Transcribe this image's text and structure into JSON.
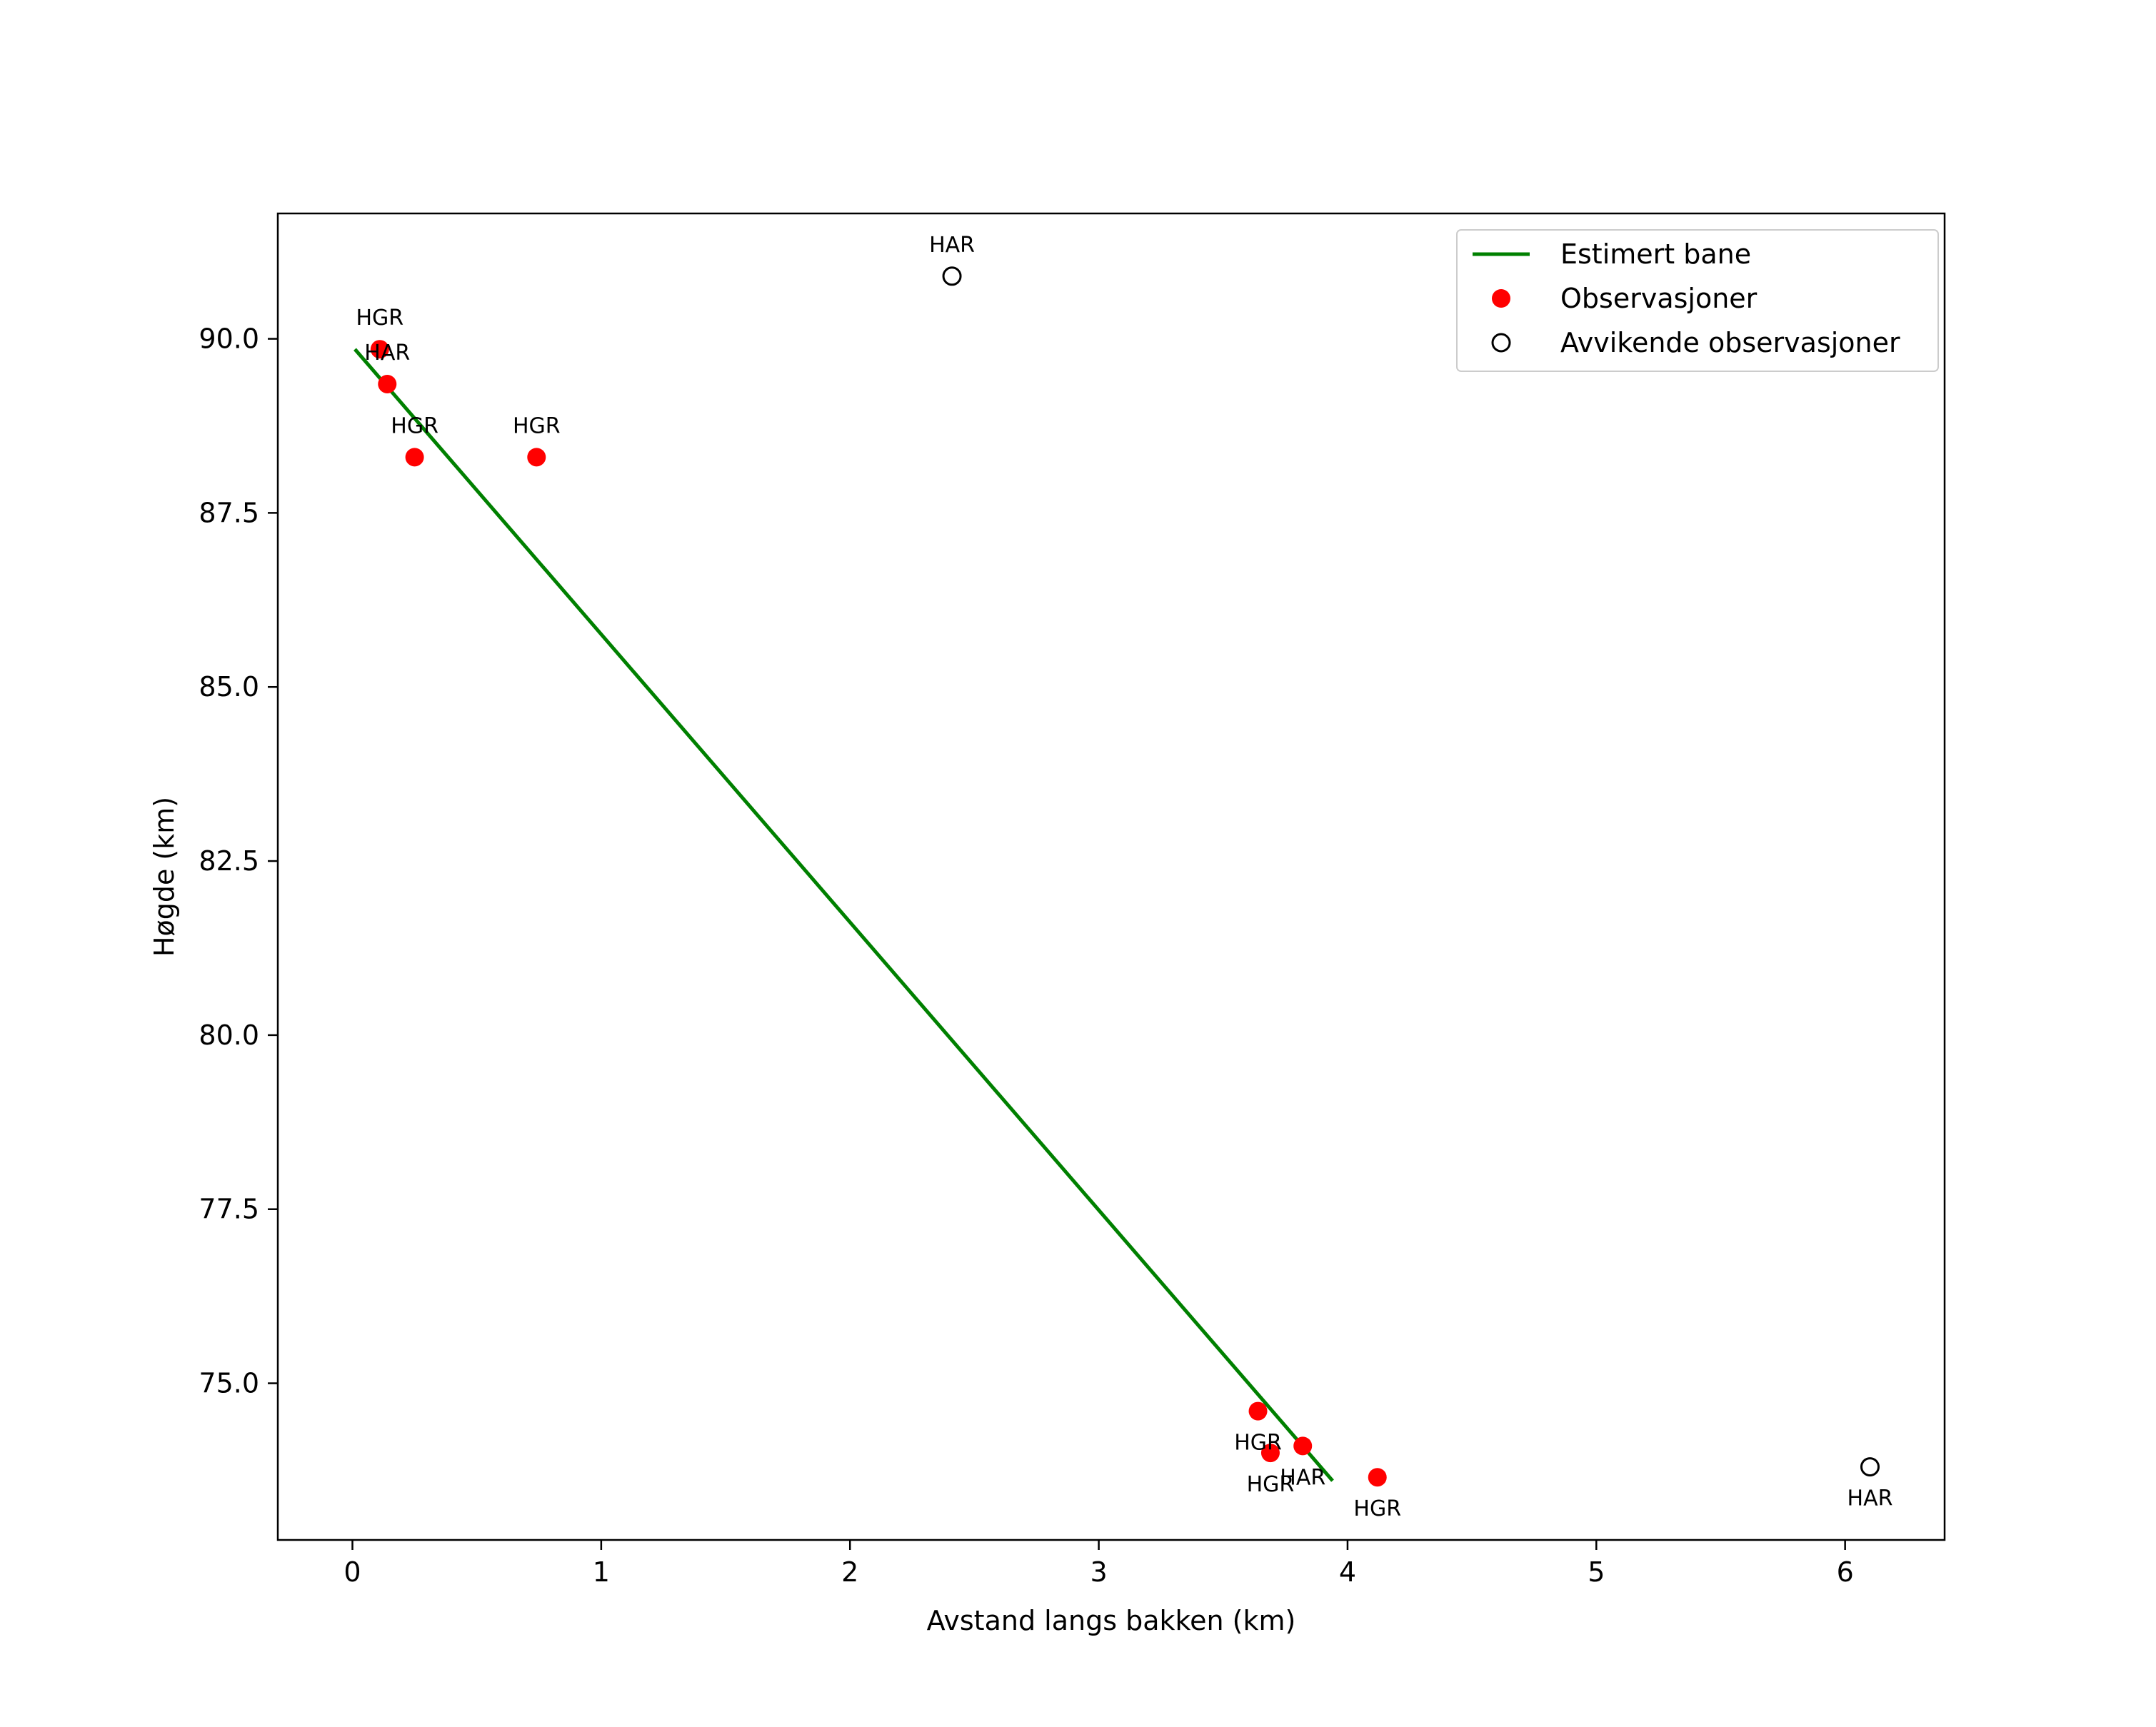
{
  "chart_data": {
    "type": "scatter",
    "title": "",
    "xlabel": "Avstand langs bakken (km)",
    "ylabel": "Høgde (km)",
    "xlim": [
      -0.3,
      6.4
    ],
    "ylim": [
      72.75,
      91.8
    ],
    "xticks": [
      {
        "value": 0,
        "label": "0"
      },
      {
        "value": 1,
        "label": "1"
      },
      {
        "value": 2,
        "label": "2"
      },
      {
        "value": 3,
        "label": "3"
      },
      {
        "value": 4,
        "label": "4"
      },
      {
        "value": 5,
        "label": "5"
      },
      {
        "value": 6,
        "label": "6"
      }
    ],
    "yticks": [
      {
        "value": 75.0,
        "label": "75.0"
      },
      {
        "value": 77.5,
        "label": "77.5"
      },
      {
        "value": 80.0,
        "label": "80.0"
      },
      {
        "value": 82.5,
        "label": "82.5"
      },
      {
        "value": 85.0,
        "label": "85.0"
      },
      {
        "value": 87.5,
        "label": "87.5"
      },
      {
        "value": 90.0,
        "label": "90.0"
      }
    ],
    "grid": false,
    "legend_position": "top-right",
    "colors": {
      "line": "#008000",
      "observation": "#ff0000",
      "outlier_edge": "#000000",
      "axes": "#000000"
    },
    "series": [
      {
        "name": "Estimert bane",
        "kind": "line",
        "points": [
          {
            "x": 0.01,
            "y": 89.85
          },
          {
            "x": 3.94,
            "y": 73.6
          }
        ]
      },
      {
        "name": "Observasjoner",
        "kind": "scatter",
        "points": [
          {
            "x": 0.11,
            "y": 89.85,
            "label": "HGR",
            "label_pos": "above"
          },
          {
            "x": 0.14,
            "y": 89.35,
            "label": "HAR",
            "label_pos": "above"
          },
          {
            "x": 0.25,
            "y": 88.3,
            "label": "HGR",
            "label_pos": "above"
          },
          {
            "x": 0.74,
            "y": 88.3,
            "label": "HGR",
            "label_pos": "above"
          },
          {
            "x": 3.64,
            "y": 74.6,
            "label": "HGR",
            "label_pos": "below"
          },
          {
            "x": 3.69,
            "y": 74.0,
            "label": "HGR",
            "label_pos": "below"
          },
          {
            "x": 3.82,
            "y": 74.1,
            "label": "HAR",
            "label_pos": "below"
          },
          {
            "x": 4.12,
            "y": 73.65,
            "label": "HGR",
            "label_pos": "below"
          }
        ]
      },
      {
        "name": "Avvikende observasjoner",
        "kind": "scatter",
        "points": [
          {
            "x": 2.41,
            "y": 90.9,
            "label": "HAR",
            "label_pos": "above"
          },
          {
            "x": 6.1,
            "y": 73.8,
            "label": "HAR",
            "label_pos": "below"
          }
        ]
      }
    ]
  }
}
